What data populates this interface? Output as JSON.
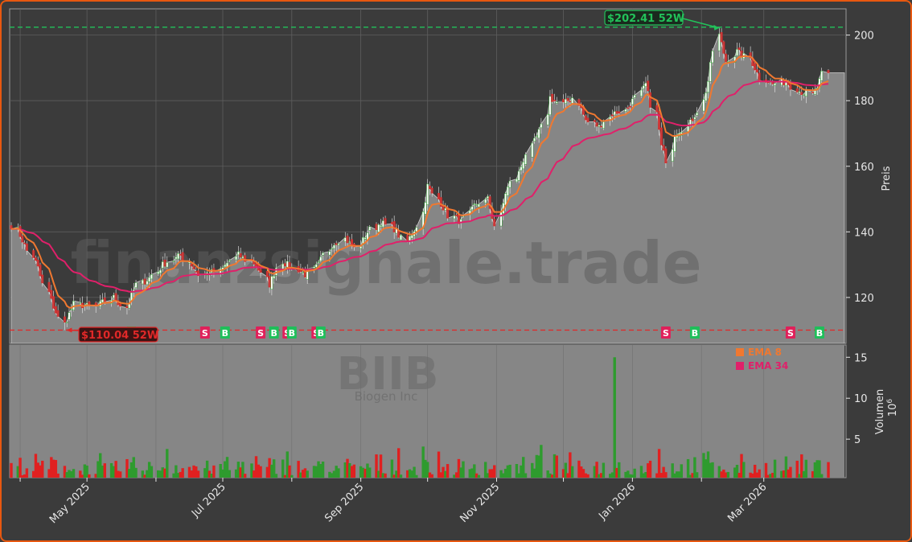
{
  "colors": {
    "background": "#3b3b3b",
    "plot_area": "#868686",
    "border": "#e8580f",
    "candle_up": "#2e9b2e",
    "candle_down": "#e02020",
    "ema8": "#f07830",
    "ema34": "#e0206a",
    "high_line": "#22c25a",
    "low_line": "#e02828",
    "signal_sell": "#e0205a",
    "signal_buy": "#1fbf5a",
    "watermark": "#5a5a5a"
  },
  "watermark": {
    "site": "finanzsignale.trade",
    "ticker": "BIIB",
    "company": "Biogen Inc"
  },
  "annotations": {
    "high_label": "$202.41 52W",
    "low_label": "$110.04 52W"
  },
  "legend": {
    "ema8": "EMA 8",
    "ema34": "EMA 34"
  },
  "signals": [
    {
      "label": "B",
      "date_index": 38
    },
    {
      "label": "S",
      "date_index": 61
    },
    {
      "label": "B",
      "date_index": 68
    },
    {
      "label": "S",
      "date_index": 80
    },
    {
      "label": "B",
      "date_index": 84
    },
    {
      "label": "S",
      "date_index": 88
    },
    {
      "label": "B",
      "date_index": 90
    },
    {
      "label": "S",
      "date_index": 97
    },
    {
      "label": "B",
      "date_index": 99
    },
    {
      "label": "S",
      "date_index": 210
    },
    {
      "label": "B",
      "date_index": 219
    },
    {
      "label": "S",
      "date_index": 250
    },
    {
      "label": "B",
      "date_index": 259
    }
  ],
  "chart_data": [
    {
      "type": "line",
      "panel": "price",
      "ylabel": "Preis",
      "ylim": [
        106,
        208
      ],
      "yticks": [
        120,
        140,
        160,
        180,
        200
      ],
      "grid": true,
      "start_date": "2025-03-28",
      "x_ticks": [
        "May 2025",
        "Jul 2025",
        "Sep 2025",
        "Nov 2025",
        "Jan 2026",
        "Mar 2026"
      ],
      "high_52w": 202.41,
      "low_52w": 110.04,
      "last_close": 188.5,
      "close_anchors": [
        [
          0,
          142
        ],
        [
          4,
          136
        ],
        [
          8,
          129
        ],
        [
          12,
          119
        ],
        [
          16,
          112
        ],
        [
          20,
          118
        ],
        [
          26,
          117
        ],
        [
          32,
          120
        ],
        [
          36,
          117
        ],
        [
          40,
          124
        ],
        [
          44,
          126
        ],
        [
          48,
          130
        ],
        [
          54,
          133
        ],
        [
          60,
          127
        ],
        [
          66,
          128
        ],
        [
          72,
          133
        ],
        [
          78,
          130
        ],
        [
          82,
          124
        ],
        [
          86,
          131
        ],
        [
          90,
          129
        ],
        [
          94,
          127
        ],
        [
          98,
          130
        ],
        [
          102,
          136
        ],
        [
          106,
          138
        ],
        [
          110,
          135
        ],
        [
          114,
          140
        ],
        [
          118,
          143
        ],
        [
          122,
          141
        ],
        [
          126,
          137
        ],
        [
          130,
          142
        ],
        [
          133,
          154
        ],
        [
          136,
          150
        ],
        [
          140,
          145
        ],
        [
          144,
          143
        ],
        [
          148,
          148
        ],
        [
          152,
          150
        ],
        [
          155,
          142
        ],
        [
          158,
          152
        ],
        [
          162,
          158
        ],
        [
          166,
          166
        ],
        [
          170,
          172
        ],
        [
          172,
          181
        ],
        [
          176,
          179
        ],
        [
          180,
          181
        ],
        [
          184,
          174
        ],
        [
          188,
          172
        ],
        [
          192,
          176
        ],
        [
          196,
          177
        ],
        [
          200,
          181
        ],
        [
          203,
          185
        ],
        [
          206,
          176
        ],
        [
          208,
          166
        ],
        [
          210,
          162
        ],
        [
          212,
          170
        ],
        [
          216,
          172
        ],
        [
          220,
          177
        ],
        [
          223,
          186
        ],
        [
          226,
          200
        ],
        [
          229,
          192
        ],
        [
          232,
          195
        ],
        [
          236,
          193
        ],
        [
          240,
          187
        ],
        [
          244,
          185
        ],
        [
          248,
          186
        ],
        [
          252,
          183
        ],
        [
          256,
          182
        ],
        [
          258,
          184
        ],
        [
          261,
          190
        ]
      ]
    },
    {
      "type": "bar",
      "panel": "volume",
      "ylabel": "Volumen",
      "yscale_label": "10^6",
      "ylim": [
        0.3,
        16.5
      ],
      "yticks": [
        5,
        10,
        15
      ],
      "unit": "million shares",
      "typical_range": [
        0.6,
        3.5
      ],
      "spikes": [
        {
          "date_index": 50,
          "value": 3.8
        },
        {
          "date_index": 88,
          "value": 3.5
        },
        {
          "date_index": 124,
          "value": 3.9
        },
        {
          "date_index": 131,
          "value": 4.1
        },
        {
          "date_index": 170,
          "value": 4.3
        },
        {
          "date_index": 193,
          "value": 15.0
        },
        {
          "date_index": 207,
          "value": 3.8
        },
        {
          "date_index": 223,
          "value": 3.5
        }
      ]
    }
  ]
}
